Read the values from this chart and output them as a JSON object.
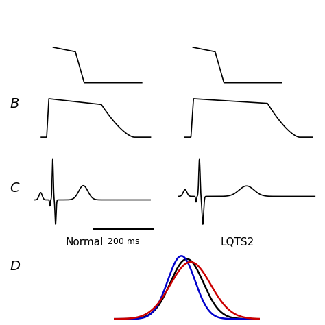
{
  "bg_color": "#ffffff",
  "label_B": "B",
  "label_C": "C",
  "label_D": "D",
  "label_normal": "Normal",
  "label_lqts2": "LQTS2",
  "scale_bar_label": "200 ms",
  "line_color": "#000000",
  "line_color_black": "#000000",
  "line_color_blue": "#0000cc",
  "line_color_red": "#cc0000"
}
